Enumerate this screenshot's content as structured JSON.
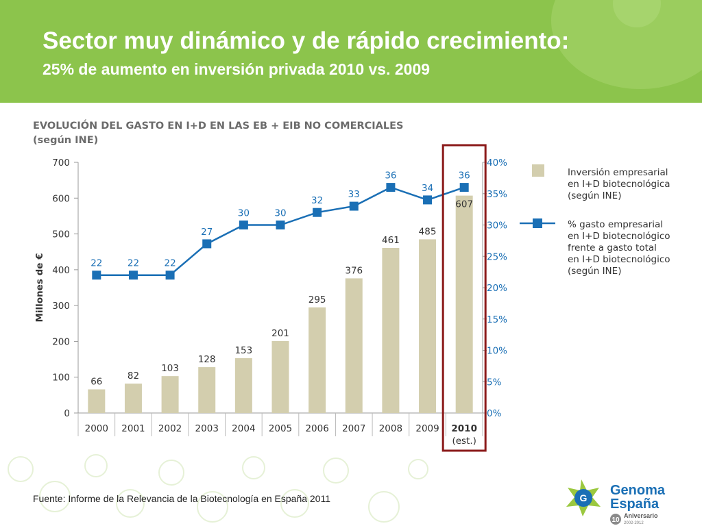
{
  "header": {
    "title": "Sector muy dinámico y de rápido crecimiento",
    "title_colon": ":",
    "subtitle": "25% de aumento en inversión privada 2010 vs. 2009",
    "bg_color": "#8cc44c"
  },
  "chart_title": {
    "line1": "EVOLUCIÓN DEL GASTO EN I+D EN LAS EB + EIB NO COMERCIALES",
    "line2": "(según INE)"
  },
  "legend": {
    "bar_label_lines": [
      "Inversión empresarial",
      "en I+D biotecnológica",
      "(según INE)"
    ],
    "line_label_lines": [
      "% gasto empresarial",
      "en I+D biotecnológico",
      "frente a gasto total",
      "en I+D biotecnológico",
      "(según INE)"
    ]
  },
  "chart_data": {
    "type": "bar",
    "categories": [
      "2000",
      "2001",
      "2002",
      "2003",
      "2004",
      "2005",
      "2006",
      "2007",
      "2008",
      "2009",
      "2010"
    ],
    "last_category_note": "(est.)",
    "series": [
      {
        "name": "Inversión empresarial en I+D biotecnológica (según INE)",
        "type": "bar",
        "axis": "left",
        "color": "#d3ceae",
        "values": [
          66,
          82,
          103,
          128,
          153,
          201,
          295,
          376,
          461,
          485,
          607
        ]
      },
      {
        "name": "% gasto empresarial en I+D biotecnológico frente a gasto total en I+D biotecnológico (según INE)",
        "type": "line",
        "axis": "right",
        "color": "#1a6fb5",
        "values": [
          22,
          22,
          22,
          27,
          30,
          30,
          32,
          33,
          36,
          34,
          36
        ]
      }
    ],
    "ylabel": "Millones de €",
    "ylim": [
      0,
      700
    ],
    "yticks": [
      "0",
      "100",
      "200",
      "300",
      "400",
      "500",
      "600",
      "700"
    ],
    "y2lim": [
      0,
      40
    ],
    "y2ticks": [
      "0%",
      "5%",
      "10%",
      "15%",
      "20%",
      "25%",
      "30%",
      "35%",
      "40%"
    ],
    "highlight_category": "2010",
    "highlight_color": "#8b1a1a"
  },
  "source": "Fuente: Informe de la Relevancia de la Biotecnología en España 2011",
  "logo": {
    "name_line1": "Genoma",
    "name_line2": "España",
    "badge_number": "10",
    "anniversary": "Aniversario",
    "years": "2002-2012",
    "letter": "G",
    "color": "#1a6fb5"
  }
}
